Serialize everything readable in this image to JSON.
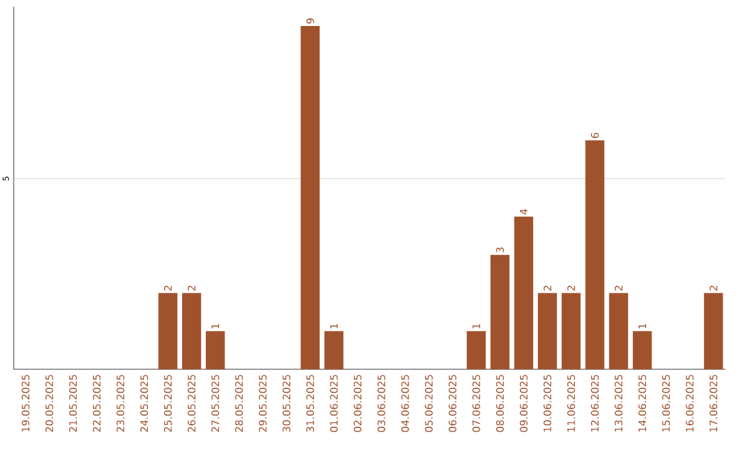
{
  "chart_data": {
    "type": "bar",
    "categories": [
      "19.05.2025",
      "20.05.2025",
      "21.05.2025",
      "22.05.2025",
      "23.05.2025",
      "24.05.2025",
      "25.05.2025",
      "26.05.2025",
      "27.05.2025",
      "28.05.2025",
      "29.05.2025",
      "30.05.2025",
      "31.05.2025",
      "01.06.2025",
      "02.06.2025",
      "03.06.2025",
      "04.06.2025",
      "05.06.2025",
      "06.06.2025",
      "07.06.2025",
      "08.06.2025",
      "09.06.2025",
      "10.06.2025",
      "11.06.2025",
      "12.06.2025",
      "13.06.2025",
      "14.06.2025",
      "15.06.2025",
      "16.06.2025",
      "17.06.2025"
    ],
    "values": [
      0,
      0,
      0,
      0,
      0,
      0,
      2,
      2,
      1,
      0,
      0,
      0,
      9,
      1,
      0,
      0,
      0,
      0,
      0,
      1,
      3,
      4,
      2,
      2,
      6,
      2,
      1,
      0,
      0,
      2
    ],
    "value_labels": [
      null,
      null,
      null,
      null,
      null,
      null,
      "2",
      "2",
      "1",
      null,
      null,
      null,
      "9",
      "1",
      null,
      null,
      null,
      null,
      null,
      "1",
      "3",
      "4",
      "2",
      "2",
      "6",
      "2",
      "1",
      null,
      null,
      "2"
    ],
    "color": "#a0522d",
    "ylim": [
      0,
      9.5
    ],
    "yticks": [
      5
    ],
    "grid": "y"
  }
}
